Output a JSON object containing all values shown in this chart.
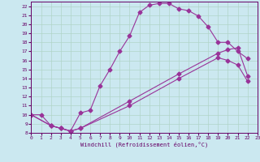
{
  "xlabel": "Windchill (Refroidissement éolien,°C)",
  "bg_color": "#cbe8f0",
  "grid_color": "#b0d4c8",
  "line_color": "#993399",
  "xlim": [
    0,
    23
  ],
  "ylim": [
    8,
    22.5
  ],
  "xticks": [
    0,
    1,
    2,
    3,
    4,
    5,
    6,
    7,
    8,
    9,
    10,
    11,
    12,
    13,
    14,
    15,
    16,
    17,
    18,
    19,
    20,
    21,
    22,
    23
  ],
  "yticks": [
    8,
    9,
    10,
    11,
    12,
    13,
    14,
    15,
    16,
    17,
    18,
    19,
    20,
    21,
    22
  ],
  "curve1_x": [
    0,
    1,
    2,
    3,
    4,
    5,
    6,
    7,
    8,
    9,
    10,
    11,
    12,
    13,
    14,
    15,
    16,
    17,
    18,
    19,
    20,
    21,
    22
  ],
  "curve1_y": [
    10,
    10,
    8.8,
    8.5,
    8.2,
    10.2,
    10.5,
    13.2,
    15.0,
    17.0,
    18.7,
    21.3,
    22.1,
    22.3,
    22.3,
    21.7,
    21.5,
    20.9,
    19.7,
    18.0,
    18.0,
    17.0,
    16.2
  ],
  "curve2_x": [
    0,
    2,
    3,
    4,
    5,
    10,
    15,
    19,
    20,
    21,
    22
  ],
  "curve2_y": [
    10,
    8.8,
    8.5,
    8.2,
    8.5,
    11.5,
    14.5,
    16.8,
    17.2,
    17.4,
    14.3
  ],
  "curve3_x": [
    0,
    2,
    3,
    4,
    5,
    10,
    15,
    19,
    20,
    21,
    22
  ],
  "curve3_y": [
    10,
    8.8,
    8.5,
    8.2,
    8.5,
    11.0,
    14.0,
    16.3,
    16.0,
    15.5,
    13.7
  ]
}
